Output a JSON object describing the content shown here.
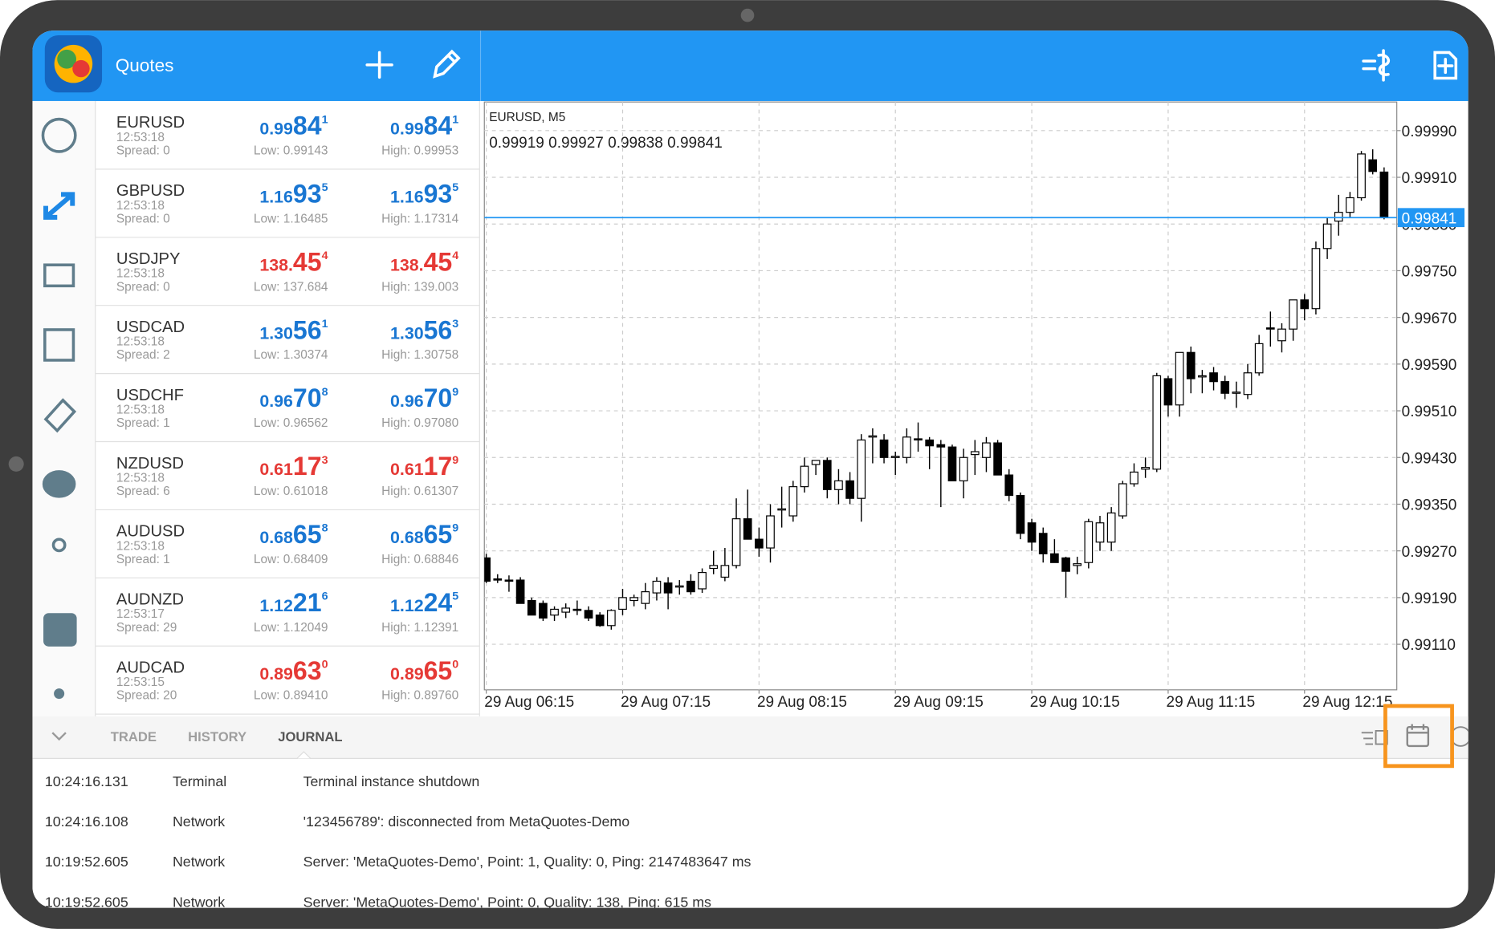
{
  "header": {
    "title": "Quotes"
  },
  "quotes": [
    {
      "symbol": "EURUSD",
      "time": "12:53:18",
      "spread": "Spread: 0",
      "bid": [
        "0.99",
        "84",
        "1"
      ],
      "low": "Low: 0.99143",
      "ask": [
        "0.99",
        "84",
        "1"
      ],
      "high": "High: 0.99953",
      "color": "#1976d2"
    },
    {
      "symbol": "GBPUSD",
      "time": "12:53:18",
      "spread": "Spread: 0",
      "bid": [
        "1.16",
        "93",
        "5"
      ],
      "low": "Low: 1.16485",
      "ask": [
        "1.16",
        "93",
        "5"
      ],
      "high": "High: 1.17314",
      "color": "#1976d2"
    },
    {
      "symbol": "USDJPY",
      "time": "12:53:18",
      "spread": "Spread: 0",
      "bid": [
        "138.",
        "45",
        "4"
      ],
      "low": "Low: 137.684",
      "ask": [
        "138.",
        "45",
        "4"
      ],
      "high": "High: 139.003",
      "color": "#e53935"
    },
    {
      "symbol": "USDCAD",
      "time": "12:53:18",
      "spread": "Spread: 2",
      "bid": [
        "1.30",
        "56",
        "1"
      ],
      "low": "Low: 1.30374",
      "ask": [
        "1.30",
        "56",
        "3"
      ],
      "high": "High: 1.30758",
      "color": "#1976d2"
    },
    {
      "symbol": "USDCHF",
      "time": "12:53:18",
      "spread": "Spread: 1",
      "bid": [
        "0.96",
        "70",
        "8"
      ],
      "low": "Low: 0.96562",
      "ask": [
        "0.96",
        "70",
        "9"
      ],
      "high": "High: 0.97080",
      "color": "#1976d2"
    },
    {
      "symbol": "NZDUSD",
      "time": "12:53:18",
      "spread": "Spread: 6",
      "bid": [
        "0.61",
        "17",
        "3"
      ],
      "low": "Low: 0.61018",
      "ask": [
        "0.61",
        "17",
        "9"
      ],
      "high": "High: 0.61307",
      "color": "#e53935"
    },
    {
      "symbol": "AUDUSD",
      "time": "12:53:18",
      "spread": "Spread: 1",
      "bid": [
        "0.68",
        "65",
        "8"
      ],
      "low": "Low: 0.68409",
      "ask": [
        "0.68",
        "65",
        "9"
      ],
      "high": "High: 0.68846",
      "color": "#1976d2"
    },
    {
      "symbol": "AUDNZD",
      "time": "12:53:17",
      "spread": "Spread: 29",
      "bid": [
        "1.12",
        "21",
        "6"
      ],
      "low": "Low: 1.12049",
      "ask": [
        "1.12",
        "24",
        "5"
      ],
      "high": "High: 1.12391",
      "color": "#1976d2"
    },
    {
      "symbol": "AUDCAD",
      "time": "12:53:15",
      "spread": "Spread: 20",
      "bid": [
        "0.89",
        "63",
        "0"
      ],
      "low": "Low: 0.89410",
      "ask": [
        "0.89",
        "65",
        "0"
      ],
      "high": "High: 0.89760",
      "color": "#e53935"
    }
  ],
  "chart_data": {
    "type": "candlestick",
    "title": "EURUSD, M5",
    "open": [
      0.99258,
      0.99222,
      0.9922,
      0.9922,
      0.99185,
      0.9918,
      0.9916,
      0.99165,
      0.9917,
      0.99168,
      0.9916,
      0.99142,
      0.9917,
      0.99185,
      0.9918,
      0.99198,
      0.99215,
      0.99208,
      0.99218,
      0.99205,
      0.9924,
      0.99225,
      0.99245,
      0.99325,
      0.9929,
      0.99275,
      0.9934,
      0.9933,
      0.9938,
      0.99418,
      0.99425,
      0.99375,
      0.9939,
      0.9936,
      0.99465,
      0.9946,
      0.9943,
      0.9943,
      0.99462,
      0.9946,
      0.99452,
      0.99448,
      0.9939,
      0.99435,
      0.9943,
      0.99455,
      0.994,
      0.99365,
      0.99318,
      0.993,
      0.99265,
      0.99258,
      0.99245,
      0.9925,
      0.99285,
      0.99285,
      0.9933,
      0.99385,
      0.9941,
      0.9941,
      0.99565,
      0.9952,
      0.9961,
      0.99568,
      0.99575,
      0.9956,
      0.9954,
      0.99538,
      0.99575,
      0.99652,
      0.9963,
      0.9965,
      0.997,
      0.99685,
      0.99788,
      0.99835,
      0.9985,
      0.99875,
      0.9994,
      0.99919
    ],
    "high": [
      0.99265,
      0.9923,
      0.99228,
      0.99225,
      0.9919,
      0.99185,
      0.99175,
      0.9918,
      0.99185,
      0.99175,
      0.99165,
      0.9917,
      0.99205,
      0.99195,
      0.99215,
      0.99225,
      0.99225,
      0.9922,
      0.9923,
      0.9924,
      0.9927,
      0.99275,
      0.9936,
      0.99375,
      0.9931,
      0.9935,
      0.9938,
      0.9939,
      0.9943,
      0.99425,
      0.9943,
      0.9941,
      0.99405,
      0.9947,
      0.9948,
      0.9947,
      0.9944,
      0.9948,
      0.9949,
      0.99465,
      0.9946,
      0.99452,
      0.99445,
      0.9946,
      0.99465,
      0.9946,
      0.9941,
      0.9937,
      0.99325,
      0.9931,
      0.9929,
      0.9926,
      0.9926,
      0.99325,
      0.9933,
      0.99345,
      0.9939,
      0.9942,
      0.9943,
      0.99575,
      0.9957,
      0.9961,
      0.9962,
      0.9958,
      0.99585,
      0.9957,
      0.9956,
      0.9959,
      0.9964,
      0.9968,
      0.9966,
      0.997,
      0.9971,
      0.998,
      0.9984,
      0.9988,
      0.99885,
      0.99955,
      0.99958,
      0.99927
    ],
    "low": [
      0.99215,
      0.99215,
      0.992,
      0.9918,
      0.9916,
      0.9915,
      0.9915,
      0.99155,
      0.9916,
      0.9915,
      0.9914,
      0.99135,
      0.9916,
      0.99175,
      0.9917,
      0.99185,
      0.9917,
      0.99195,
      0.99195,
      0.99198,
      0.9923,
      0.99218,
      0.9924,
      0.9929,
      0.9926,
      0.9925,
      0.9931,
      0.9932,
      0.9937,
      0.994,
      0.9936,
      0.9935,
      0.9935,
      0.9932,
      0.9942,
      0.9942,
      0.994,
      0.9942,
      0.9944,
      0.9941,
      0.99345,
      0.9939,
      0.9936,
      0.994,
      0.99405,
      0.994,
      0.99355,
      0.9929,
      0.9927,
      0.9925,
      0.9925,
      0.9919,
      0.9923,
      0.9924,
      0.9927,
      0.9927,
      0.99325,
      0.9938,
      0.99395,
      0.99405,
      0.995,
      0.995,
      0.9954,
      0.9954,
      0.99545,
      0.9953,
      0.99515,
      0.9953,
      0.9957,
      0.9962,
      0.9961,
      0.9963,
      0.99665,
      0.99675,
      0.9977,
      0.9981,
      0.9984,
      0.9987,
      0.99915,
      0.99838
    ],
    "close": [
      0.99218,
      0.9922,
      0.99218,
      0.9918,
      0.9916,
      0.99155,
      0.9917,
      0.99172,
      0.99168,
      0.99155,
      0.99142,
      0.99168,
      0.9919,
      0.9919,
      0.992,
      0.99218,
      0.99198,
      0.9921,
      0.992,
      0.99233,
      0.99245,
      0.99245,
      0.99325,
      0.9929,
      0.99275,
      0.9933,
      0.99342,
      0.9938,
      0.99415,
      0.99425,
      0.99375,
      0.9939,
      0.9936,
      0.9946,
      0.99467,
      0.9943,
      0.99432,
      0.99465,
      0.9946,
      0.9945,
      0.99448,
      0.9939,
      0.9943,
      0.9944,
      0.99455,
      0.994,
      0.99365,
      0.993,
      0.99285,
      0.99265,
      0.9925,
      0.99235,
      0.99248,
      0.9932,
      0.99318,
      0.99335,
      0.99385,
      0.99405,
      0.99413,
      0.9957,
      0.9952,
      0.9961,
      0.99565,
      0.9957,
      0.9956,
      0.9954,
      0.99542,
      0.99575,
      0.99625,
      0.9965,
      0.9965,
      0.997,
      0.99685,
      0.99788,
      0.9983,
      0.9985,
      0.99875,
      0.9995,
      0.9992,
      0.99841
    ],
    "up_color": "#ffffff",
    "down_color": "#000000",
    "price_line_color": "#2196f3",
    "ylim": [
      0.99032,
      1.00039
    ],
    "yticks": [
      {
        "value": 0.9911,
        "label": "0.99110"
      },
      {
        "value": 0.9919,
        "label": "0.99190"
      },
      {
        "value": 0.9927,
        "label": "0.99270"
      },
      {
        "value": 0.9935,
        "label": "0.99350"
      },
      {
        "value": 0.9943,
        "label": "0.99430"
      },
      {
        "value": 0.9951,
        "label": "0.99510"
      },
      {
        "value": 0.9959,
        "label": "0.99590"
      },
      {
        "value": 0.9967,
        "label": "0.99670"
      },
      {
        "value": 0.9975,
        "label": "0.99750"
      },
      {
        "value": 0.9983,
        "label": "0.99830"
      },
      {
        "value": 0.9991,
        "label": "0.99910"
      },
      {
        "value": 0.9999,
        "label": "0.99990"
      }
    ],
    "xticks": [
      {
        "value": 0,
        "label": "29 Aug 06:15"
      },
      {
        "value": 12,
        "label": "29 Aug 07:15"
      },
      {
        "value": 24,
        "label": "29 Aug 08:15"
      },
      {
        "value": 36,
        "label": "29 Aug 09:15"
      },
      {
        "value": 48,
        "label": "29 Aug 10:15"
      },
      {
        "value": 60,
        "label": "29 Aug 11:15"
      },
      {
        "value": 72,
        "label": "29 Aug 12:15"
      }
    ],
    "grid": true
  },
  "tabs": [
    "TRADE",
    "HISTORY",
    "JOURNAL"
  ],
  "journal": [
    [
      "10:24:16.131",
      "Terminal",
      "Terminal instance shutdown"
    ],
    [
      "10:24:16.108",
      "Network",
      "'123456789': disconnected from MetaQuotes-Demo"
    ],
    [
      "10:19:52.605",
      "Network",
      "Server: 'MetaQuotes-Demo', Point: 1, Quality: 0, Ping: 2147483647 ms"
    ],
    [
      "10:19:52.605",
      "Network",
      "Server: 'MetaQuotes-Demo', Point: 0, Quality: 138, Ping: 615 ms"
    ]
  ]
}
